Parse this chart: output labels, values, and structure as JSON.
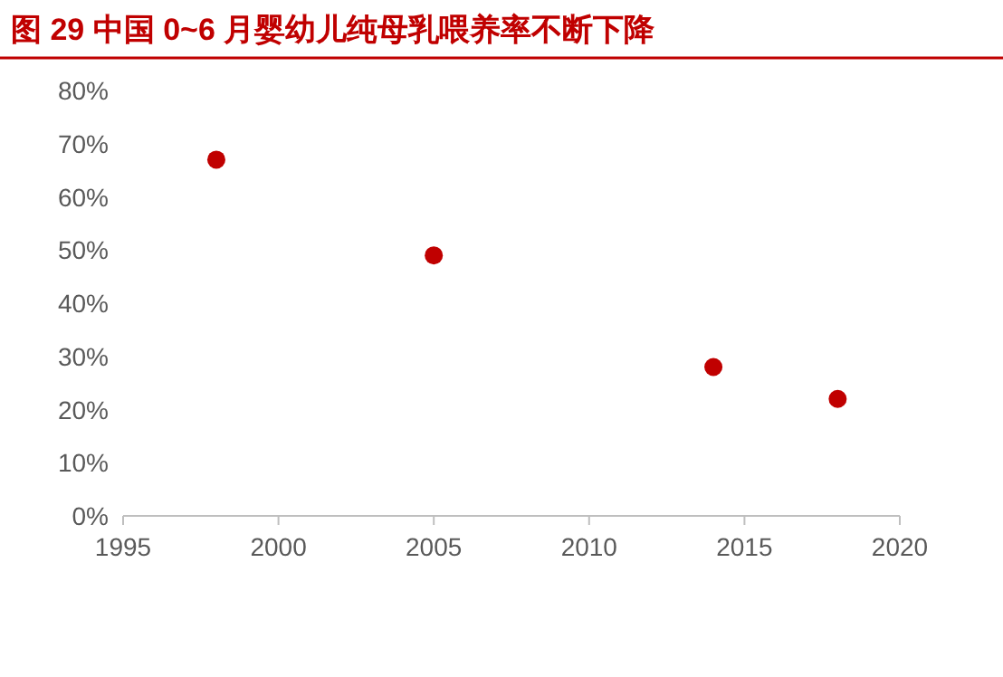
{
  "chart_data": {
    "type": "scatter",
    "title": "图 29  中国 0~6 月婴幼儿纯母乳喂养率不断下降",
    "x": [
      1998,
      2005,
      2014,
      2018
    ],
    "series": [
      {
        "color": "#c00000",
        "values": [
          67,
          49,
          28,
          22
        ]
      }
    ],
    "marker": "circle",
    "xlim": [
      1995,
      2020
    ],
    "xticks": [
      1995,
      2000,
      2005,
      2010,
      2015,
      2020
    ],
    "ylim": [
      0,
      80
    ],
    "yticks": [
      {
        "value": 0,
        "label": "0%"
      },
      {
        "value": 10,
        "label": "10%"
      },
      {
        "value": 20,
        "label": "20%"
      },
      {
        "value": 30,
        "label": "30%"
      },
      {
        "value": 40,
        "label": "40%"
      },
      {
        "value": 50,
        "label": "50%"
      },
      {
        "value": 60,
        "label": "60%"
      },
      {
        "value": 70,
        "label": "70%"
      },
      {
        "value": 80,
        "label": "80%"
      }
    ]
  }
}
